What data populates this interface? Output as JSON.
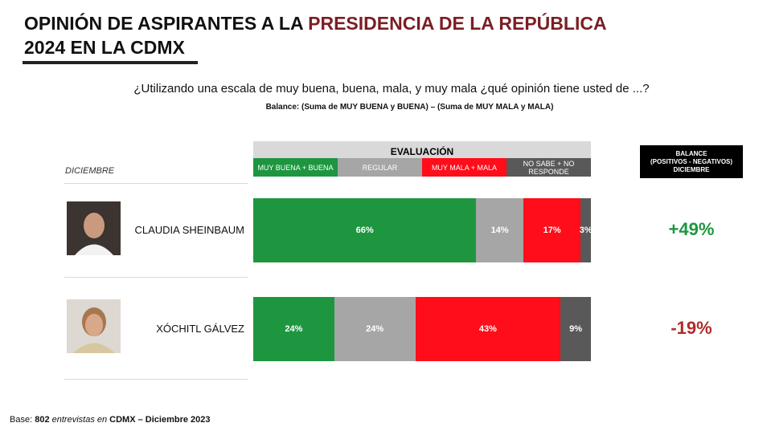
{
  "chart_data": {
    "type": "stacked-bar",
    "title_parts": [
      "OPINIÓN DE ASPIRANTES A LA",
      "PRESIDENCIA DE LA REPÚBLICA",
      "2024 EN LA CDMX"
    ],
    "subtitle": "¿Utilizando una escala de muy buena, buena, mala, y muy mala ¿qué opinión tiene usted de ...?",
    "note": "Balance: (Suma de MUY BUENA y BUENA) – (Suma de MUY MALA y MALA)",
    "legend_title": "EVALUACIÓN",
    "row_header": "DICIEMBRE",
    "categories": [
      "CLAUDIA SHEINBAUM",
      "XÓCHITL GÁLVEZ"
    ],
    "xlim": [
      0,
      100
    ],
    "series": [
      {
        "name": "MUY BUENA + BUENA",
        "color": "#1e9640",
        "values": [
          66,
          24
        ],
        "value_labels": [
          "66%",
          "24%"
        ]
      },
      {
        "name": "REGULAR",
        "color": "#a6a6a6",
        "values": [
          14,
          24
        ],
        "value_labels": [
          "14%",
          "24%"
        ]
      },
      {
        "name": "MUY MALA + MALA",
        "color": "#ff0d1a",
        "values": [
          17,
          43
        ],
        "value_labels": [
          "17%",
          "43%"
        ]
      },
      {
        "name": "NO SABE + NO RESPONDE",
        "color": "#595959",
        "values": [
          3,
          9
        ],
        "value_labels": [
          "3%",
          "9%"
        ]
      }
    ],
    "balance": {
      "header": [
        "BALANCE",
        "(POSITIVOS - NEGATIVOS)",
        "DICIEMBRE"
      ],
      "values": [
        49,
        -19
      ],
      "value_labels": [
        "+49%",
        "-19%"
      ],
      "colors": [
        "#1e9640",
        "#b22a2a"
      ]
    },
    "footer_parts": [
      "Base:",
      "802",
      "entrevistas en",
      "CDMX – Diciembre 2023"
    ]
  }
}
